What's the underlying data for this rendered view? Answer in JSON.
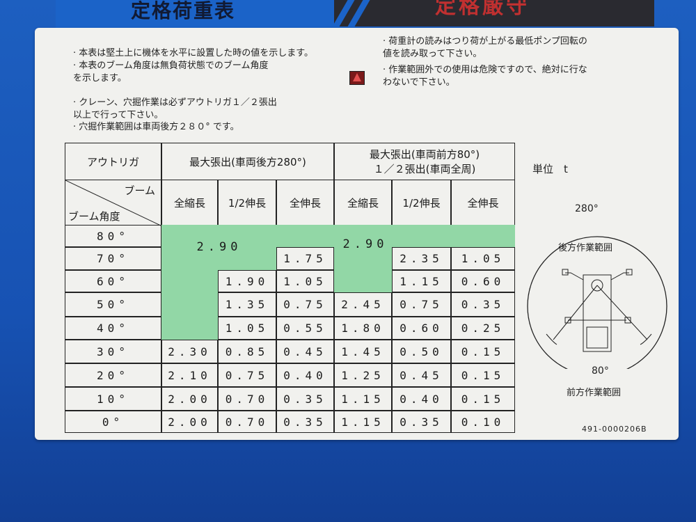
{
  "header": {
    "title": "定格荷重表",
    "warning_title": "定格厳守"
  },
  "notes_left": [
    "本表は堅土上に機体を水平に設置した時の値を示します。",
    "本表のブーム角度は無負荷状態でのブーム角度\nを示します。",
    "クレーン、穴掘作業は必ずアウトリガ１／２張出\n以上で行って下さい。",
    "穴掘作業範囲は車両後方２８０° です。"
  ],
  "notes_right": [
    "荷重計の読みはつり荷が上がる最低ポンプ回転の\n値を読み取って下さい。",
    "作業範囲外での使用は危険ですので、絶対に行な\nわないで下さい。"
  ],
  "warning_icon": "warning-triangle-icon",
  "table": {
    "outrigger_label": "アウトリガ",
    "boom_label": "ブーム",
    "boom_angle_label": "ブーム角度",
    "group_left": "最大張出(車両後方280°)",
    "group_right_line1": "最大張出(車両前方80°)",
    "group_right_line2": "１／２張出(車両全周)",
    "columns": [
      "全縮長",
      "1/2伸長",
      "全伸長",
      "全縮長",
      "1/2伸長",
      "全伸長"
    ],
    "green_left_value": "2.90",
    "green_right_value": "2.90",
    "green_color": "#92d7a6",
    "rows": [
      {
        "angle": "80°",
        "values": [
          null,
          null,
          null,
          null,
          null,
          null
        ]
      },
      {
        "angle": "70°",
        "values": [
          null,
          null,
          "1.75",
          null,
          "2.35",
          "1.05"
        ]
      },
      {
        "angle": "60°",
        "values": [
          null,
          "1.90",
          "1.05",
          null,
          "1.15",
          "0.60"
        ]
      },
      {
        "angle": "50°",
        "values": [
          null,
          "1.35",
          "0.75",
          "2.45",
          "0.75",
          "0.35"
        ]
      },
      {
        "angle": "40°",
        "values": [
          null,
          "1.05",
          "0.55",
          "1.80",
          "0.60",
          "0.25"
        ]
      },
      {
        "angle": "30°",
        "values": [
          "2.30",
          "0.85",
          "0.45",
          "1.45",
          "0.50",
          "0.15"
        ]
      },
      {
        "angle": "20°",
        "values": [
          "2.10",
          "0.75",
          "0.40",
          "1.25",
          "0.45",
          "0.15"
        ]
      },
      {
        "angle": "10°",
        "values": [
          "2.00",
          "0.70",
          "0.35",
          "1.15",
          "0.40",
          "0.15"
        ]
      },
      {
        "angle": "0°",
        "values": [
          "2.00",
          "0.70",
          "0.35",
          "1.15",
          "0.35",
          "0.10"
        ]
      }
    ]
  },
  "diagram": {
    "unit_label": "単位　t",
    "rear_angle": "280°",
    "rear_label": "後方作業範囲",
    "front_angle": "80°",
    "front_label": "前方作業範囲"
  },
  "part_number": "491-0000206B"
}
